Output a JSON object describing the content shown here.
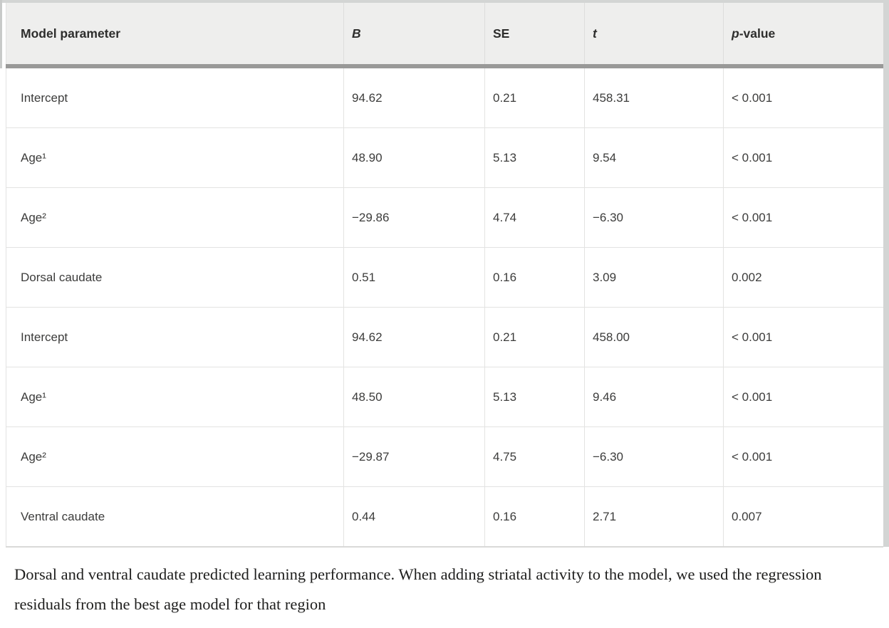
{
  "table": {
    "header": {
      "cols": [
        {
          "italic": "",
          "plain": "Model parameter"
        },
        {
          "italic": "B",
          "plain": ""
        },
        {
          "italic": "",
          "plain": "SE"
        },
        {
          "italic": "t",
          "plain": ""
        },
        {
          "italic": "p",
          "plain": "-value"
        }
      ]
    },
    "rows": [
      {
        "param": "Intercept",
        "b": "94.62",
        "se": "0.21",
        "t": "458.31",
        "p": "< 0.001"
      },
      {
        "param": "Age¹",
        "b": "48.90",
        "se": "5.13",
        "t": "9.54",
        "p": "< 0.001"
      },
      {
        "param": "Age²",
        "b": "−29.86",
        "se": "4.74",
        "t": "−6.30",
        "p": "< 0.001"
      },
      {
        "param": "Dorsal caudate",
        "b": "0.51",
        "se": "0.16",
        "t": "3.09",
        "p": "0.002"
      },
      {
        "param": "Intercept",
        "b": "94.62",
        "se": "0.21",
        "t": "458.00",
        "p": "< 0.001"
      },
      {
        "param": "Age¹",
        "b": "48.50",
        "se": "5.13",
        "t": "9.46",
        "p": "< 0.001"
      },
      {
        "param": "Age²",
        "b": "−29.87",
        "se": "4.75",
        "t": "−6.30",
        "p": "< 0.001"
      },
      {
        "param": "Ventral caudate",
        "b": "0.44",
        "se": "0.16",
        "t": "2.71",
        "p": "0.007"
      }
    ]
  },
  "caption": {
    "text": "Dorsal and ventral caudate predicted learning performance. When adding striatal activity to the model, we used the regression residuals from the best age model for that region"
  },
  "colors": {
    "header_bg": "#eeeeed",
    "thick_rule": "#999998",
    "grid_line": "#e3e3e2",
    "frame": "#d3d5d4"
  }
}
